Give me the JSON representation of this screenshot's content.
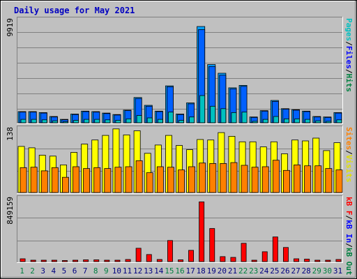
{
  "chart_data": [
    {
      "type": "bar",
      "title": "Daily usage for May 2021",
      "max_label": "9919",
      "categories": [
        "1",
        "2",
        "3",
        "4",
        "5",
        "6",
        "7",
        "8",
        "9",
        "10",
        "11",
        "12",
        "13",
        "14",
        "15",
        "16",
        "17",
        "18",
        "19",
        "20",
        "21",
        "22",
        "23",
        "24",
        "25",
        "26",
        "27",
        "28",
        "29",
        "30",
        "31"
      ],
      "weekend_days": [
        "1",
        "2",
        "8",
        "9",
        "15",
        "16",
        "22",
        "23",
        "29",
        "30"
      ],
      "legend": [
        {
          "name": "Pages",
          "color": "#00c0c0"
        },
        {
          "name": "/",
          "color": "#000000"
        },
        {
          "name": "Files",
          "color": "#0000ff"
        },
        {
          "name": "/",
          "color": "#000000"
        },
        {
          "name": "Hits",
          "color": "#008040"
        }
      ],
      "series": [
        {
          "name": "Hits",
          "color": "#00a0ff",
          "values": [
            1150,
            1150,
            1050,
            650,
            350,
            900,
            1200,
            1150,
            1000,
            850,
            1300,
            2600,
            1800,
            1200,
            3800,
            900,
            2050,
            9919,
            6000,
            5100,
            3600,
            3850,
            600,
            1250,
            2300,
            1450,
            1350,
            1200,
            650,
            600,
            1050
          ]
        },
        {
          "name": "Files",
          "color": "#0060ff",
          "values": [
            1100,
            1100,
            1000,
            600,
            300,
            850,
            1150,
            1100,
            950,
            800,
            1250,
            2500,
            1700,
            1150,
            3700,
            850,
            1950,
            9600,
            5800,
            4900,
            3500,
            3750,
            550,
            1200,
            2200,
            1400,
            1300,
            1150,
            600,
            550,
            1000
          ]
        },
        {
          "name": "Pages",
          "color": "#00c0c0",
          "values": [
            350,
            350,
            300,
            200,
            100,
            250,
            350,
            350,
            300,
            250,
            400,
            750,
            500,
            350,
            1100,
            250,
            600,
            2800,
            1700,
            1450,
            1050,
            1100,
            150,
            350,
            650,
            400,
            400,
            350,
            200,
            150,
            300
          ]
        }
      ]
    },
    {
      "type": "bar",
      "max_label": "138",
      "categories": [
        "1",
        "2",
        "3",
        "4",
        "5",
        "6",
        "7",
        "8",
        "9",
        "10",
        "11",
        "12",
        "13",
        "14",
        "15",
        "16",
        "17",
        "18",
        "19",
        "20",
        "21",
        "22",
        "23",
        "24",
        "25",
        "26",
        "27",
        "28",
        "29",
        "30",
        "31"
      ],
      "legend": [
        {
          "name": "Sites",
          "color": "#ff8000"
        },
        {
          "name": "/",
          "color": "#000000"
        },
        {
          "name": "Visits",
          "color": "#e0e000"
        }
      ],
      "series": [
        {
          "name": "Visits",
          "color": "#ffff00",
          "values": [
            100,
            97,
            81,
            79,
            60,
            87,
            105,
            114,
            124,
            138,
            125,
            134,
            85,
            103,
            124,
            102,
            93,
            115,
            114,
            130,
            122,
            110,
            110,
            99,
            110,
            84,
            114,
            112,
            118,
            91,
            108
          ]
        },
        {
          "name": "Sites",
          "color": "#ff8000",
          "values": [
            54,
            55,
            47,
            54,
            33,
            56,
            52,
            54,
            52,
            55,
            56,
            69,
            43,
            56,
            55,
            49,
            56,
            64,
            63,
            63,
            65,
            59,
            55,
            56,
            70,
            48,
            60,
            58,
            58,
            52,
            49
          ]
        }
      ]
    },
    {
      "type": "bar",
      "max_label": "849159",
      "categories": [
        "1",
        "2",
        "3",
        "4",
        "5",
        "6",
        "7",
        "8",
        "9",
        "10",
        "11",
        "12",
        "13",
        "14",
        "15",
        "16",
        "17",
        "18",
        "19",
        "20",
        "21",
        "22",
        "23",
        "24",
        "25",
        "26",
        "27",
        "28",
        "29",
        "30",
        "31"
      ],
      "legend": [
        {
          "name": "kB F",
          "color": "#ff0000"
        },
        {
          "name": "/",
          "color": "#000000"
        },
        {
          "name": "kB In",
          "color": "#0000ff"
        },
        {
          "name": "/",
          "color": "#000000"
        },
        {
          "name": "kB Out",
          "color": "#008040"
        }
      ],
      "series": [
        {
          "name": "kB F",
          "color": "#ff0000",
          "values": [
            40000,
            20000,
            20000,
            20000,
            10000,
            20000,
            25000,
            25000,
            20000,
            20000,
            30000,
            190000,
            100000,
            30000,
            300000,
            25000,
            160000,
            849159,
            470000,
            70000,
            60000,
            260000,
            20000,
            140000,
            350000,
            200000,
            40000,
            35000,
            20000,
            20000,
            30000
          ]
        }
      ]
    }
  ]
}
